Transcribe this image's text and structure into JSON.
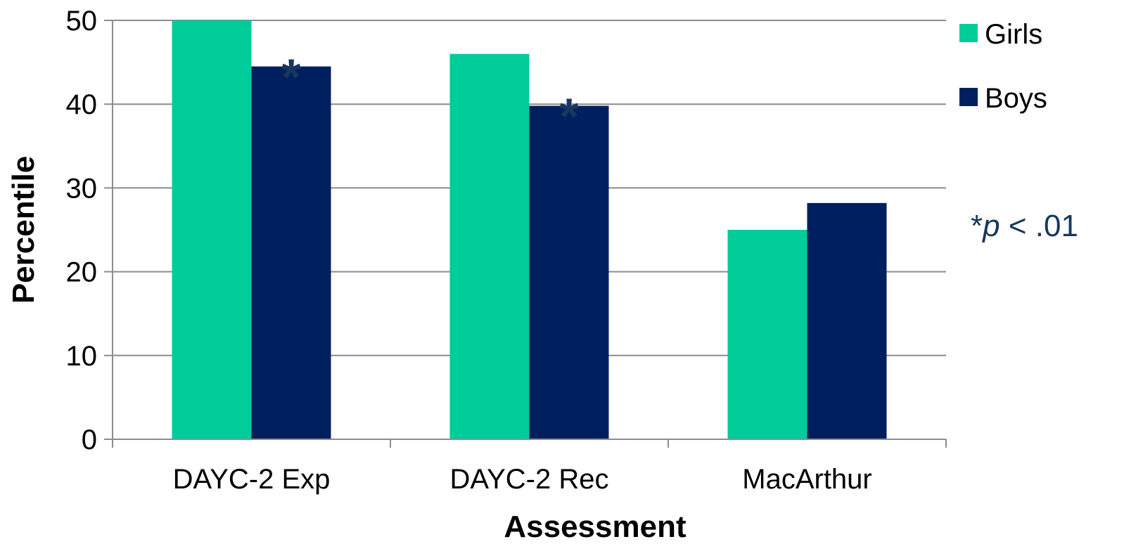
{
  "chart_data": {
    "type": "bar",
    "categories": [
      "DAYC-2 Exp",
      "DAYC-2 Rec",
      "MacArthur"
    ],
    "series": [
      {
        "name": "Girls",
        "values": [
          50,
          46,
          25
        ],
        "color": "#00CC99"
      },
      {
        "name": "Boys",
        "values": [
          44.5,
          39.8,
          28.2
        ],
        "color": "#001F5F"
      }
    ],
    "xlabel": "Assessment",
    "ylabel": "Percentile",
    "ylim": [
      0,
      50
    ],
    "yticks": [
      0,
      10,
      20,
      30,
      40,
      50
    ],
    "grid": true,
    "legend_position": "top-right",
    "significance": {
      "marker": "*",
      "series": "Boys",
      "categories": [
        "DAYC-2 Exp",
        "DAYC-2 Rec"
      ],
      "color": "#17375E"
    },
    "annotation": {
      "prefix": "*",
      "italic": "p",
      "suffix": " < .01",
      "color": "#17375E"
    }
  }
}
